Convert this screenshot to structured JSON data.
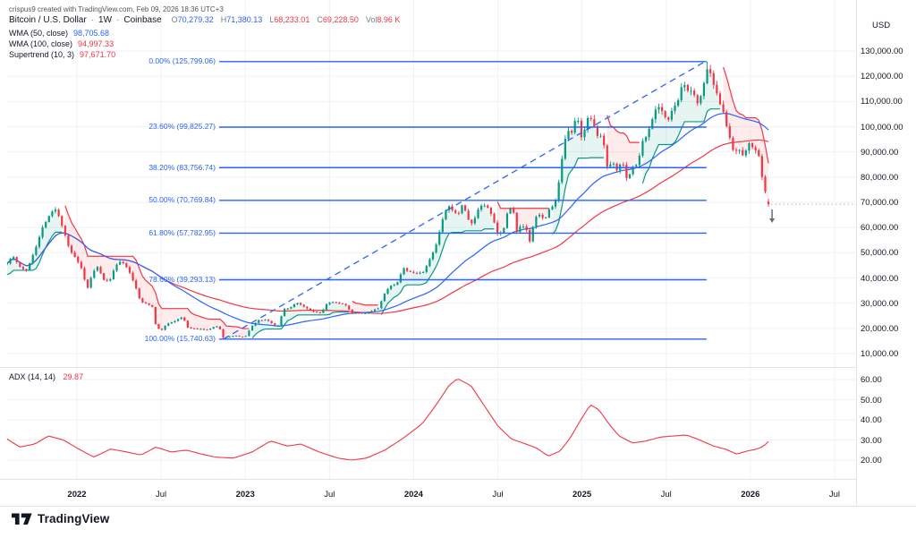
{
  "meta": {
    "credit": "crispus9 created with TradingView.com, Feb 09, 2026 18:36 UTC+3"
  },
  "symbol": {
    "title": "Bitcoin / U.S. Dollar",
    "sep": "·",
    "interval": "1W",
    "exchange": "Coinbase",
    "ohlc": [
      {
        "k": "O",
        "v": "70,279.32",
        "color": "#2962FF"
      },
      {
        "k": "H",
        "v": "71,380.13",
        "color": "#2962FF"
      },
      {
        "k": "L",
        "v": "68,233.01",
        "color": "#F23645"
      },
      {
        "k": "C",
        "v": "69,228.50",
        "color": "#F23645"
      },
      {
        "k": "Vol",
        "v": "8.96 K",
        "color": "#F23645"
      }
    ]
  },
  "indicators": [
    {
      "label": "WMA (50, close)",
      "value": "98,705.68",
      "color": "#2962FF"
    },
    {
      "label": "WMA (100, close)",
      "value": "94,997.33",
      "color": "#F23645"
    },
    {
      "label": "Supertrend (10, 3)",
      "value": "97,671.70",
      "color": "#F23645"
    }
  ],
  "adx_pane": {
    "label": "ADX (14, 14)",
    "value": "29.87",
    "value_color": "#F23645"
  },
  "price_axis": {
    "currency": "USD",
    "labels": [
      {
        "text": "130,000.00",
        "value": 130000
      },
      {
        "text": "120,000.00",
        "value": 120000
      },
      {
        "text": "110,000.00",
        "value": 110000
      },
      {
        "text": "100,000.00",
        "value": 100000
      },
      {
        "text": "90,000.00",
        "value": 90000
      },
      {
        "text": "80,000.00",
        "value": 80000
      },
      {
        "text": "70,000.00",
        "value": 70000
      },
      {
        "text": "60,000.00",
        "value": 60000
      },
      {
        "text": "50,000.00",
        "value": 50000
      },
      {
        "text": "40,000.00",
        "value": 40000
      },
      {
        "text": "30,000.00",
        "value": 30000
      },
      {
        "text": "20,000.00",
        "value": 20000
      },
      {
        "text": "10,000.00",
        "value": 10000
      }
    ]
  },
  "adx_axis": {
    "labels": [
      {
        "text": "60.00",
        "value": 60
      },
      {
        "text": "50.00",
        "value": 50
      },
      {
        "text": "40.00",
        "value": 40
      },
      {
        "text": "30.00",
        "value": 30
      },
      {
        "text": "20.00",
        "value": 20
      }
    ]
  },
  "time_axis": {
    "labels": [
      {
        "text": "2022",
        "t": 2022.0,
        "major": true
      },
      {
        "text": "Jul",
        "t": 2022.5,
        "major": false
      },
      {
        "text": "2023",
        "t": 2023.0,
        "major": true
      },
      {
        "text": "Jul",
        "t": 2023.5,
        "major": false
      },
      {
        "text": "2024",
        "t": 2024.0,
        "major": true
      },
      {
        "text": "Jul",
        "t": 2024.5,
        "major": false
      },
      {
        "text": "2025",
        "t": 2025.0,
        "major": true
      },
      {
        "text": "Jul",
        "t": 2025.5,
        "major": false
      },
      {
        "text": "2026",
        "t": 2026.0,
        "major": true
      },
      {
        "text": "Jul",
        "t": 2026.5,
        "major": false
      }
    ]
  },
  "fib": {
    "levels": [
      {
        "pct": "0.00%",
        "price_text": "125,799.06",
        "value": 125799.06
      },
      {
        "pct": "23.60%",
        "price_text": "99,825.27",
        "value": 99825.27
      },
      {
        "pct": "38.20%",
        "price_text": "83,756.74",
        "value": 83756.74
      },
      {
        "pct": "50.00%",
        "price_text": "70,769.84",
        "value": 70769.84
      },
      {
        "pct": "61.80%",
        "price_text": "57,782.95",
        "value": 57782.95
      },
      {
        "pct": "78.60%",
        "price_text": "39,293.13",
        "value": 39293.13
      },
      {
        "pct": "100.00%",
        "price_text": "15,740.63",
        "value": 15740.63
      }
    ]
  },
  "logo": {
    "text": "TradingView"
  },
  "chart_data": {
    "type": "candlestick",
    "title": "Bitcoin / U.S. Dollar, 1W, Coinbase",
    "t_start": 2021.585,
    "t_end": 2026.115,
    "bars_per_year": 52.18,
    "price_axis_range": {
      "min": 10000,
      "max": 130000,
      "step": 10000
    },
    "price_keyframes": [
      [
        2021.585,
        46000
      ],
      [
        2021.62,
        48800
      ],
      [
        2021.66,
        44500
      ],
      [
        2021.7,
        42800
      ],
      [
        2021.73,
        47800
      ],
      [
        2021.77,
        54800
      ],
      [
        2021.8,
        60800
      ],
      [
        2021.83,
        64300
      ],
      [
        2021.87,
        67500
      ],
      [
        2021.9,
        63200
      ],
      [
        2021.93,
        57000
      ],
      [
        2021.96,
        50500
      ],
      [
        2022.0,
        47200
      ],
      [
        2022.03,
        43100
      ],
      [
        2022.06,
        35100
      ],
      [
        2022.09,
        41600
      ],
      [
        2022.12,
        44400
      ],
      [
        2022.16,
        39300
      ],
      [
        2022.19,
        38400
      ],
      [
        2022.22,
        43200
      ],
      [
        2022.25,
        46500
      ],
      [
        2022.29,
        45000
      ],
      [
        2022.32,
        41000
      ],
      [
        2022.35,
        36000
      ],
      [
        2022.38,
        30300
      ],
      [
        2022.42,
        29700
      ],
      [
        2022.45,
        28500
      ],
      [
        2022.47,
        20500
      ],
      [
        2022.5,
        19000
      ],
      [
        2022.53,
        21600
      ],
      [
        2022.57,
        22500
      ],
      [
        2022.6,
        23800
      ],
      [
        2022.63,
        24400
      ],
      [
        2022.66,
        20100
      ],
      [
        2022.7,
        19900
      ],
      [
        2022.74,
        19600
      ],
      [
        2022.78,
        19400
      ],
      [
        2022.81,
        20400
      ],
      [
        2022.84,
        21100
      ],
      [
        2022.87,
        16300
      ],
      [
        2022.9,
        16700
      ],
      [
        2022.94,
        17100
      ],
      [
        2022.97,
        16600
      ],
      [
        2023.0,
        16600
      ],
      [
        2023.04,
        21100
      ],
      [
        2023.08,
        23200
      ],
      [
        2023.12,
        23400
      ],
      [
        2023.16,
        22100
      ],
      [
        2023.19,
        20300
      ],
      [
        2023.23,
        27700
      ],
      [
        2023.27,
        28300
      ],
      [
        2023.3,
        30300
      ],
      [
        2023.34,
        29200
      ],
      [
        2023.37,
        27600
      ],
      [
        2023.41,
        26600
      ],
      [
        2023.45,
        26100
      ],
      [
        2023.49,
        30600
      ],
      [
        2023.52,
        30300
      ],
      [
        2023.56,
        30100
      ],
      [
        2023.6,
        29100
      ],
      [
        2023.63,
        26100
      ],
      [
        2023.67,
        26000
      ],
      [
        2023.71,
        25900
      ],
      [
        2023.75,
        26900
      ],
      [
        2023.79,
        28000
      ],
      [
        2023.83,
        34200
      ],
      [
        2023.87,
        37200
      ],
      [
        2023.9,
        37800
      ],
      [
        2023.94,
        43800
      ],
      [
        2023.98,
        42300
      ],
      [
        2024.02,
        41700
      ],
      [
        2024.06,
        42600
      ],
      [
        2024.1,
        47800
      ],
      [
        2024.13,
        52200
      ],
      [
        2024.17,
        62500
      ],
      [
        2024.2,
        68500
      ],
      [
        2024.23,
        67200
      ],
      [
        2024.26,
        64500
      ],
      [
        2024.29,
        69400
      ],
      [
        2024.32,
        63800
      ],
      [
        2024.35,
        61000
      ],
      [
        2024.38,
        67000
      ],
      [
        2024.41,
        69300
      ],
      [
        2024.44,
        67800
      ],
      [
        2024.47,
        64300
      ],
      [
        2024.5,
        57200
      ],
      [
        2024.53,
        58300
      ],
      [
        2024.56,
        66900
      ],
      [
        2024.59,
        68200
      ],
      [
        2024.61,
        58100
      ],
      [
        2024.64,
        60900
      ],
      [
        2024.67,
        59200
      ],
      [
        2024.69,
        54200
      ],
      [
        2024.72,
        63600
      ],
      [
        2024.75,
        65600
      ],
      [
        2024.78,
        62600
      ],
      [
        2024.81,
        68100
      ],
      [
        2024.84,
        69400
      ],
      [
        2024.86,
        76700
      ],
      [
        2024.89,
        91000
      ],
      [
        2024.91,
        98000
      ],
      [
        2024.94,
        97700
      ],
      [
        2024.97,
        104400
      ],
      [
        2025.0,
        94300
      ],
      [
        2025.03,
        104100
      ],
      [
        2025.06,
        102300
      ],
      [
        2025.09,
        96100
      ],
      [
        2025.12,
        96600
      ],
      [
        2025.15,
        84400
      ],
      [
        2025.18,
        86100
      ],
      [
        2025.21,
        82600
      ],
      [
        2025.24,
        86800
      ],
      [
        2025.27,
        78400
      ],
      [
        2025.3,
        83900
      ],
      [
        2025.33,
        85200
      ],
      [
        2025.36,
        94100
      ],
      [
        2025.39,
        97100
      ],
      [
        2025.42,
        104000
      ],
      [
        2025.45,
        109000
      ],
      [
        2025.48,
        105700
      ],
      [
        2025.51,
        101700
      ],
      [
        2025.54,
        107200
      ],
      [
        2025.57,
        110000
      ],
      [
        2025.6,
        117400
      ],
      [
        2025.63,
        114700
      ],
      [
        2025.66,
        113100
      ],
      [
        2025.69,
        108900
      ],
      [
        2025.72,
        116000
      ],
      [
        2025.75,
        123800
      ],
      [
        2025.78,
        116400
      ],
      [
        2025.81,
        111000
      ],
      [
        2025.84,
        106300
      ],
      [
        2025.87,
        97000
      ],
      [
        2025.9,
        89500
      ],
      [
        2025.93,
        91000
      ],
      [
        2025.96,
        87500
      ],
      [
        2025.99,
        94200
      ],
      [
        2026.02,
        91500
      ],
      [
        2026.05,
        88000
      ],
      [
        2026.08,
        76500
      ],
      [
        2026.1,
        70500
      ],
      [
        2026.115,
        69228.5
      ]
    ],
    "last_candle": {
      "open": 70279.32,
      "high": 71380.13,
      "low": 68233.01,
      "close": 69228.5
    },
    "ath": {
      "t": 2025.75,
      "price": 125799.06
    },
    "swing_low": {
      "t": 2022.87,
      "price": 15740.63
    },
    "fib_span_t": [
      2022.845,
      2025.74
    ],
    "trendline": {
      "from": [
        2022.87,
        15740.63
      ],
      "to": [
        2025.73,
        125799.06
      ],
      "dashed": true
    },
    "adx": {
      "range": {
        "min": 20,
        "max": 60
      },
      "series": [
        [
          2021.585,
          30.5
        ],
        [
          2021.66,
          26.5
        ],
        [
          2021.75,
          28
        ],
        [
          2021.83,
          32
        ],
        [
          2021.92,
          30
        ],
        [
          2022.0,
          26
        ],
        [
          2022.1,
          21.5
        ],
        [
          2022.2,
          25.5
        ],
        [
          2022.3,
          24
        ],
        [
          2022.38,
          22.5
        ],
        [
          2022.47,
          26.5
        ],
        [
          2022.56,
          24
        ],
        [
          2022.65,
          25
        ],
        [
          2022.74,
          23
        ],
        [
          2022.82,
          21.5
        ],
        [
          2022.93,
          21
        ],
        [
          2023.04,
          24
        ],
        [
          2023.15,
          29.5
        ],
        [
          2023.25,
          27
        ],
        [
          2023.33,
          28
        ],
        [
          2023.44,
          24
        ],
        [
          2023.55,
          21
        ],
        [
          2023.63,
          20
        ],
        [
          2023.72,
          21
        ],
        [
          2023.83,
          25
        ],
        [
          2023.94,
          31
        ],
        [
          2024.05,
          38
        ],
        [
          2024.13,
          47
        ],
        [
          2024.21,
          57
        ],
        [
          2024.26,
          60.5
        ],
        [
          2024.34,
          57
        ],
        [
          2024.42,
          47
        ],
        [
          2024.5,
          37
        ],
        [
          2024.58,
          30.5
        ],
        [
          2024.65,
          28.5
        ],
        [
          2024.73,
          26
        ],
        [
          2024.8,
          22
        ],
        [
          2024.87,
          24.5
        ],
        [
          2024.93,
          31
        ],
        [
          2025.0,
          41
        ],
        [
          2025.05,
          47.5
        ],
        [
          2025.1,
          45
        ],
        [
          2025.16,
          38
        ],
        [
          2025.22,
          32
        ],
        [
          2025.3,
          28.5
        ],
        [
          2025.38,
          29.5
        ],
        [
          2025.47,
          31.5
        ],
        [
          2025.55,
          32
        ],
        [
          2025.62,
          32.5
        ],
        [
          2025.7,
          30
        ],
        [
          2025.78,
          27
        ],
        [
          2025.85,
          25.5
        ],
        [
          2025.92,
          23
        ],
        [
          2025.98,
          24.5
        ],
        [
          2026.04,
          25.5
        ],
        [
          2026.08,
          27
        ],
        [
          2026.115,
          29.87
        ]
      ]
    },
    "colors": {
      "up": "#089981",
      "down": "#F23645",
      "wma50": "#2962FF",
      "wma100": "#F23645",
      "supertrend_up": "#089981",
      "supertrend_down": "#F23645",
      "fill_up": "rgba(8,153,129,0.10)",
      "fill_down": "rgba(242,54,69,0.10)",
      "fib": "#2962FF",
      "trendline": "#2962FF",
      "adx_line": "#F23645",
      "grid": "#F0F2F8",
      "separator": "#E0E3EB",
      "last_price": "#B2B5BE",
      "marker": "#6A6D78"
    }
  }
}
